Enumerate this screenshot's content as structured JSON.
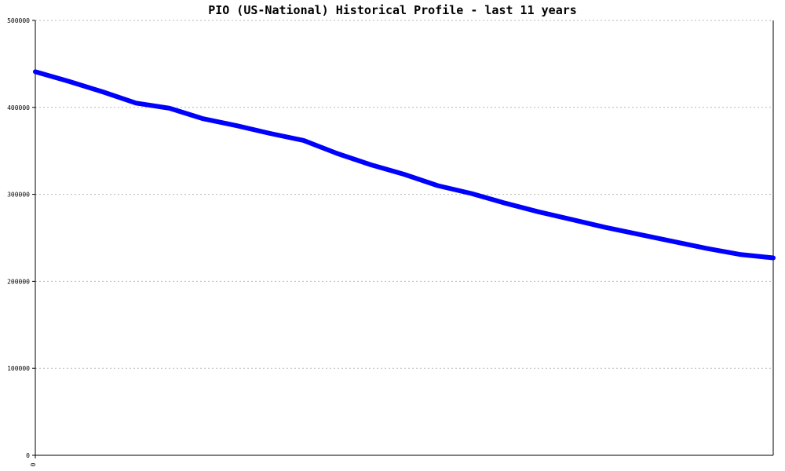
{
  "chart_data": {
    "type": "line",
    "title": "PIO (US-National) Historical Profile - last 11 years",
    "xlabel": "",
    "ylabel": "",
    "ylim": [
      0,
      500000
    ],
    "yticks": [
      "0",
      "100000",
      "200000",
      "300000",
      "400000",
      "500000"
    ],
    "xticks": [
      "0"
    ],
    "grid": true,
    "legend": "none",
    "line_color": "#0000ff",
    "series": [
      {
        "x": [
          0,
          1,
          2,
          3,
          4,
          5,
          6,
          7,
          8,
          9,
          10,
          11,
          12,
          13,
          14,
          15,
          16,
          17,
          18,
          19,
          20,
          21,
          22
        ],
        "values": [
          441000,
          430000,
          418000,
          405000,
          399000,
          387000,
          379000,
          370000,
          362000,
          347000,
          334000,
          323000,
          310000,
          301000,
          290000,
          280000,
          271000,
          262000,
          254000,
          246000,
          238000,
          231000,
          227000
        ]
      }
    ]
  }
}
